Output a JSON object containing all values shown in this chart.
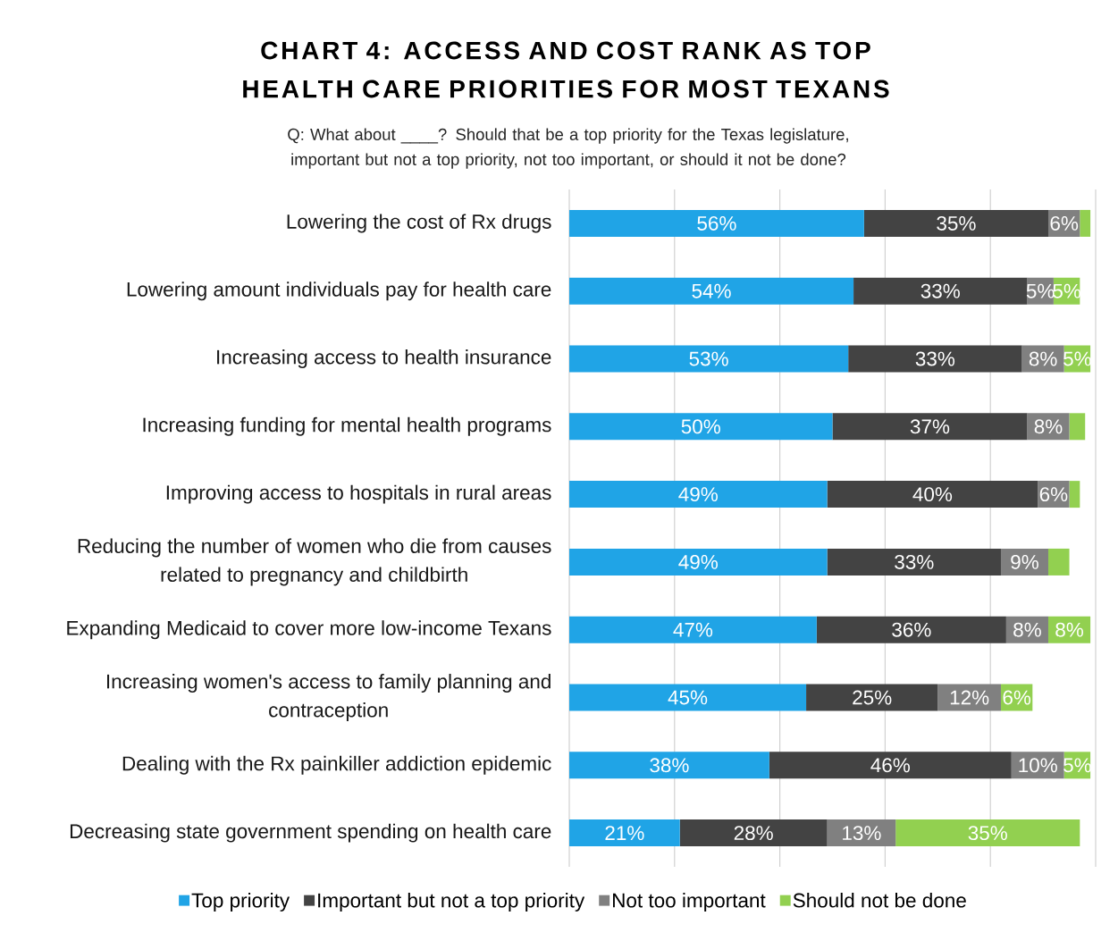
{
  "chart_data": {
    "type": "bar",
    "orientation": "horizontal",
    "stacked": true,
    "title": "CHART 4: ACCESS AND COST RANK AS TOP HEALTH CARE PRIORITIES FOR MOST TEXANS",
    "subtitle": "Q: What about ____? Should that be a top priority for the Texas legislature, important but not a top priority, not too important, or should it not be done?",
    "categories": [
      "Lowering the cost of Rx drugs",
      "Lowering amount individuals pay for health care",
      "Increasing access to health insurance",
      "Increasing funding for mental health programs",
      "Improving access to hospitals in rural areas",
      "Reducing the number of women who die from causes related to pregnancy and childbirth",
      "Expanding Medicaid to cover more low-income Texans",
      "Increasing women's access to family planning and contraception",
      "Dealing with the Rx painkiller addiction epidemic",
      "Decreasing state government spending on health care"
    ],
    "series": [
      {
        "name": "Top priority",
        "color": "#20a4e6",
        "values": [
          56,
          54,
          53,
          50,
          49,
          49,
          47,
          45,
          38,
          21
        ],
        "value_labels": [
          "56%",
          "54%",
          "53%",
          "50%",
          "49%",
          "49%",
          "47%",
          "45%",
          "38%",
          "21%"
        ]
      },
      {
        "name": "Important but not a top priority",
        "color": "#434343",
        "values": [
          35,
          33,
          33,
          37,
          40,
          33,
          36,
          25,
          46,
          28
        ],
        "value_labels": [
          "35%",
          "33%",
          "33%",
          "37%",
          "40%",
          "33%",
          "36%",
          "25%",
          "46%",
          "28%"
        ]
      },
      {
        "name": "Not too important",
        "color": "#808080",
        "values": [
          6,
          5,
          8,
          8,
          6,
          9,
          8,
          12,
          10,
          13
        ],
        "value_labels": [
          "6%",
          "5%",
          "8%",
          "8%",
          "6%",
          "9%",
          "8%",
          "12%",
          "10%",
          "13%"
        ]
      },
      {
        "name": "Should not be done",
        "color": "#92d050",
        "values": [
          2,
          5,
          5,
          3,
          2,
          4,
          8,
          6,
          5,
          35
        ],
        "value_labels": [
          null,
          "5%",
          "5%",
          null,
          null,
          null,
          "8%",
          "6%",
          "5%",
          "35%"
        ]
      }
    ],
    "xlim": [
      0,
      100
    ],
    "xticks": [
      {
        "value": 0,
        "label": null
      },
      {
        "value": 20,
        "label": null
      },
      {
        "value": 40,
        "label": null
      },
      {
        "value": 60,
        "label": null
      },
      {
        "value": 80,
        "label": null
      },
      {
        "value": 100,
        "label": null
      }
    ],
    "tick_labels": "y",
    "grid": "x",
    "legend": "bottom"
  }
}
